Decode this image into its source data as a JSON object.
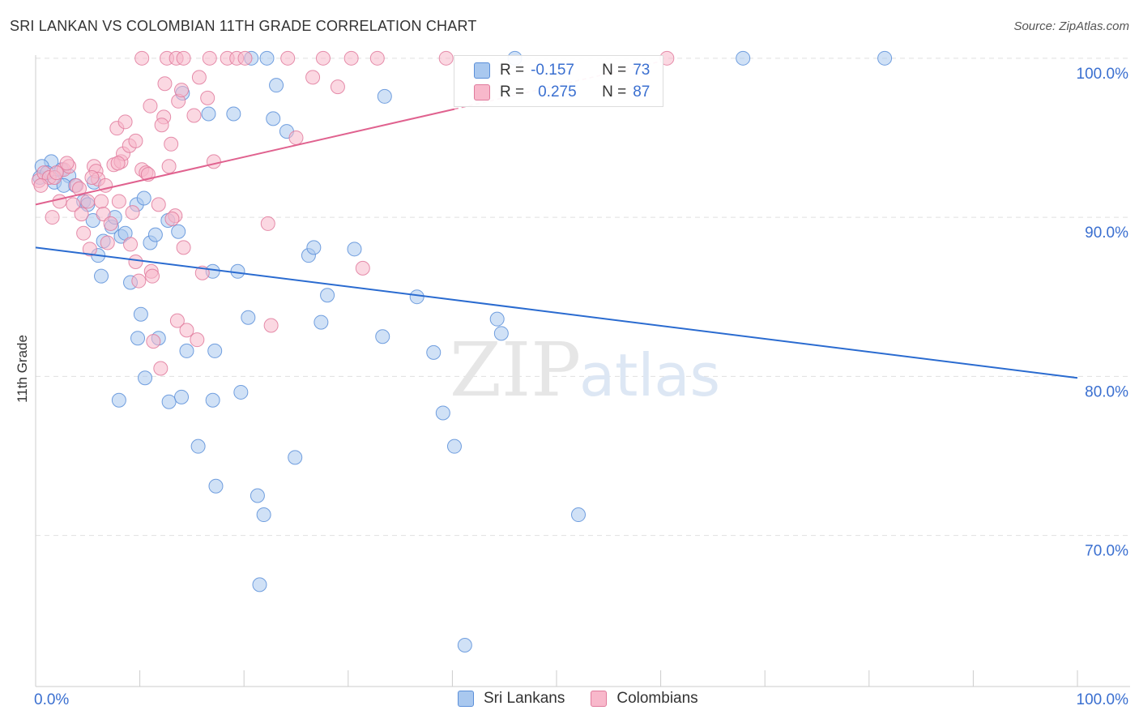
{
  "title": "SRI LANKAN VS COLOMBIAN 11TH GRADE CORRELATION CHART",
  "source": "Source: ZipAtlas.com",
  "watermark": {
    "zip": "ZIP",
    "atlas": "atlas"
  },
  "colors": {
    "blue_fill": "#a9c8ef",
    "blue_stroke": "#5b8fd9",
    "blue_line": "#2a6bd0",
    "pink_fill": "#f8b8cb",
    "pink_stroke": "#e07a9c",
    "pink_line": "#e0628f",
    "axis_label": "#3a6fd0",
    "grid": "#e0e0e0"
  },
  "legend": {
    "r_label": "R =",
    "n_label": "N =",
    "rows": [
      {
        "series": "Sri Lankans",
        "r": "-0.157",
        "n": "73"
      },
      {
        "series": "Colombians",
        "r": "0.275",
        "n": "87"
      }
    ]
  },
  "chart_data": {
    "type": "scatter",
    "title": "SRI LANKAN VS COLOMBIAN 11TH GRADE CORRELATION CHART",
    "xlabel": "",
    "ylabel": "11th Grade",
    "xlim": [
      0,
      100
    ],
    "ylim": [
      60.5,
      100.5
    ],
    "x_tick_labels": [
      "0.0%",
      "100.0%"
    ],
    "y_ticks": [
      70,
      80,
      90,
      100
    ],
    "y_tick_labels": [
      "70.0%",
      "80.0%",
      "90.0%",
      "100.0%"
    ],
    "legend_position": "bottom-center",
    "series": [
      {
        "name": "Sri Lankans",
        "color": "blue",
        "trend": {
          "x": [
            0,
            100
          ],
          "y": [
            88.1,
            79.9
          ]
        },
        "points": [
          [
            0.4,
            92.5
          ],
          [
            1.5,
            93.5
          ],
          [
            1.8,
            92.2
          ],
          [
            2.5,
            93.0
          ],
          [
            3.2,
            92.6
          ],
          [
            3.8,
            92.0
          ],
          [
            4.6,
            91.0
          ],
          [
            5.0,
            90.8
          ],
          [
            5.6,
            92.2
          ],
          [
            5.5,
            89.8
          ],
          [
            6.0,
            87.6
          ],
          [
            6.5,
            88.5
          ],
          [
            6.3,
            86.3
          ],
          [
            7.3,
            89.4
          ],
          [
            7.6,
            90.0
          ],
          [
            8.2,
            88.8
          ],
          [
            8.6,
            89.0
          ],
          [
            9.1,
            85.9
          ],
          [
            9.7,
            90.8
          ],
          [
            10.4,
            91.2
          ],
          [
            11.0,
            88.4
          ],
          [
            11.5,
            88.9
          ],
          [
            12.7,
            89.8
          ],
          [
            13.7,
            89.1
          ],
          [
            10.1,
            83.9
          ],
          [
            11.8,
            82.4
          ],
          [
            9.8,
            82.4
          ],
          [
            10.5,
            79.9
          ],
          [
            8.0,
            78.5
          ],
          [
            12.8,
            78.4
          ],
          [
            14.0,
            78.7
          ],
          [
            14.5,
            81.6
          ],
          [
            17.2,
            81.6
          ],
          [
            17.0,
            78.5
          ],
          [
            19.7,
            79.0
          ],
          [
            20.4,
            83.7
          ],
          [
            19.4,
            86.6
          ],
          [
            17.0,
            86.6
          ],
          [
            15.6,
            75.6
          ],
          [
            17.3,
            73.1
          ],
          [
            21.3,
            72.5
          ],
          [
            21.9,
            71.3
          ],
          [
            21.5,
            66.9
          ],
          [
            24.9,
            74.9
          ],
          [
            27.4,
            83.4
          ],
          [
            28.0,
            85.1
          ],
          [
            26.2,
            87.6
          ],
          [
            26.7,
            88.1
          ],
          [
            30.6,
            88.0
          ],
          [
            33.3,
            82.5
          ],
          [
            33.5,
            97.6
          ],
          [
            36.6,
            85.0
          ],
          [
            38.2,
            81.5
          ],
          [
            39.1,
            77.7
          ],
          [
            40.2,
            75.6
          ],
          [
            44.3,
            83.6
          ],
          [
            44.7,
            82.7
          ],
          [
            52.1,
            71.3
          ],
          [
            41.2,
            63.1
          ],
          [
            14.1,
            97.8
          ],
          [
            16.6,
            96.5
          ],
          [
            19.0,
            96.5
          ],
          [
            22.8,
            96.2
          ],
          [
            23.1,
            98.3
          ],
          [
            24.1,
            95.4
          ],
          [
            20.7,
            100.0
          ],
          [
            22.2,
            100.0
          ],
          [
            46.0,
            100.0
          ],
          [
            67.9,
            100.0
          ],
          [
            81.5,
            100.0
          ],
          [
            0.6,
            93.2
          ],
          [
            1.1,
            92.8
          ],
          [
            2.7,
            92.0
          ]
        ]
      },
      {
        "name": "Colombians",
        "color": "pink",
        "trend": {
          "x": [
            0,
            40.2
          ],
          "y": [
            90.8,
            96.8
          ]
        },
        "trend_dashed": {
          "x": [
            40.2,
            60.0
          ],
          "y": [
            96.8,
            99.8
          ]
        },
        "points": [
          [
            0.3,
            92.3
          ],
          [
            0.8,
            92.8
          ],
          [
            1.3,
            92.5
          ],
          [
            1.6,
            90.0
          ],
          [
            2.3,
            91.0
          ],
          [
            2.7,
            93.0
          ],
          [
            3.2,
            93.2
          ],
          [
            3.6,
            90.8
          ],
          [
            3.9,
            92.0
          ],
          [
            4.2,
            91.8
          ],
          [
            4.4,
            90.2
          ],
          [
            4.6,
            89.0
          ],
          [
            5.0,
            91.0
          ],
          [
            5.2,
            88.0
          ],
          [
            5.6,
            93.2
          ],
          [
            5.8,
            92.9
          ],
          [
            6.0,
            92.4
          ],
          [
            6.3,
            91.0
          ],
          [
            6.5,
            90.2
          ],
          [
            6.9,
            88.4
          ],
          [
            7.2,
            89.6
          ],
          [
            7.5,
            93.3
          ],
          [
            7.8,
            95.6
          ],
          [
            8.2,
            93.5
          ],
          [
            8.6,
            96.0
          ],
          [
            8.4,
            94.0
          ],
          [
            9.0,
            94.5
          ],
          [
            9.3,
            90.3
          ],
          [
            9.1,
            88.3
          ],
          [
            9.6,
            87.2
          ],
          [
            9.9,
            86.0
          ],
          [
            10.2,
            93.0
          ],
          [
            10.6,
            92.8
          ],
          [
            11.1,
            86.6
          ],
          [
            11.8,
            90.8
          ],
          [
            12.3,
            96.3
          ],
          [
            12.1,
            95.8
          ],
          [
            12.8,
            93.2
          ],
          [
            13.0,
            94.6
          ],
          [
            13.4,
            90.1
          ],
          [
            13.7,
            97.3
          ],
          [
            14.2,
            88.1
          ],
          [
            15.2,
            96.4
          ],
          [
            14.0,
            98.0
          ],
          [
            15.7,
            98.8
          ],
          [
            16.5,
            97.5
          ],
          [
            17.1,
            93.5
          ],
          [
            16.0,
            86.5
          ],
          [
            15.5,
            82.3
          ],
          [
            12.0,
            80.5
          ],
          [
            11.3,
            82.2
          ],
          [
            13.6,
            83.5
          ],
          [
            14.5,
            82.9
          ],
          [
            22.3,
            89.6
          ],
          [
            22.6,
            83.2
          ],
          [
            25.0,
            95.0
          ],
          [
            26.6,
            98.8
          ],
          [
            29.0,
            98.2
          ],
          [
            31.4,
            86.8
          ],
          [
            10.2,
            100.0
          ],
          [
            12.6,
            100.0
          ],
          [
            13.5,
            100.0
          ],
          [
            14.2,
            100.0
          ],
          [
            16.7,
            100.0
          ],
          [
            18.4,
            100.0
          ],
          [
            19.3,
            100.0
          ],
          [
            20.1,
            100.0
          ],
          [
            24.2,
            100.0
          ],
          [
            27.6,
            100.0
          ],
          [
            30.3,
            100.0
          ],
          [
            32.8,
            100.0
          ],
          [
            39.4,
            100.0
          ],
          [
            60.6,
            100.0
          ],
          [
            0.5,
            92.0
          ],
          [
            1.8,
            92.5
          ],
          [
            2.0,
            92.8
          ],
          [
            3.0,
            93.4
          ],
          [
            6.7,
            92.0
          ],
          [
            7.9,
            93.4
          ],
          [
            8.0,
            91.0
          ],
          [
            10.8,
            92.7
          ],
          [
            11.0,
            97.0
          ],
          [
            12.4,
            98.4
          ],
          [
            9.6,
            94.8
          ],
          [
            11.2,
            86.3
          ],
          [
            13.1,
            89.9
          ],
          [
            5.4,
            92.5
          ]
        ]
      }
    ]
  }
}
